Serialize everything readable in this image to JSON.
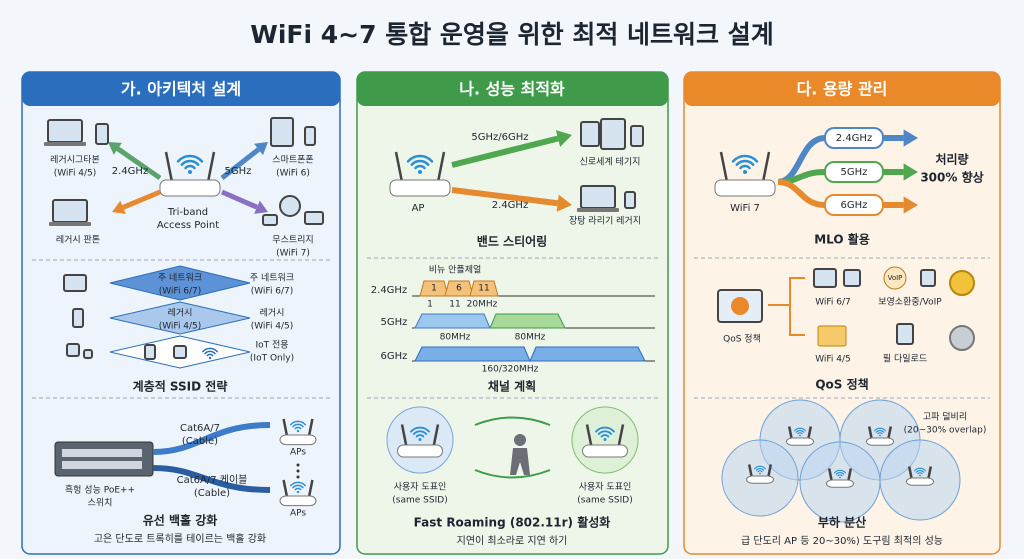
{
  "title": "WiFi 4~7 통합 운영을 위한 최적 네트워크 설계",
  "panels": [
    {
      "header": "가. 아키텍처 설계",
      "sections": [
        {
          "labels": [
            "레거시그타본",
            "(WiFi 4/5)",
            "2.4GHz",
            "5GHz",
            "스마트폰폰",
            "(WiFi 6)",
            "Tri-band",
            "Access Point",
            "레거시 판톤",
            "무스트리지",
            "(WiFi 7)"
          ]
        },
        {
          "labels": [
            "주 네트워크",
            "(WiFi 6/7)",
            "레거시",
            "(WiFi 4/5)",
            "주 네트워크",
            "(WiFi 6/7)",
            "레거시",
            "(WiFi 4/5)",
            "IoT 전용",
            "(IoT Only)"
          ],
          "caption": "계층적 SSID 전략"
        },
        {
          "labels": [
            "Cat6A/7",
            "(Cable)",
            "APs",
            "흑헝 성능 PoE++",
            "스위치",
            "Cat6A/7 케이블",
            "(Cable)",
            "APs"
          ],
          "caption": "유선 백홀 강화",
          "subcaption": "고은 단도로 트록히를 테이르는 백홀 강화"
        }
      ]
    },
    {
      "header": "나. 성능 최적화",
      "sections": [
        {
          "labels": [
            "5GHz/6GHz",
            "신로세계 테기지",
            "AP",
            "2.4GHz",
            "장탕 라리기 레거지"
          ],
          "caption": "밴드 스티어링"
        },
        {
          "labels": [
            "비뉴 안플제얼",
            "2.4GHz",
            "1",
            "6",
            "11",
            "1",
            "11",
            "20MHz",
            "5GHz",
            "80MHz",
            "80MHz",
            "6GHz",
            "160/320MHz"
          ],
          "caption": "채널 계획"
        },
        {
          "labels": [
            "사용자 도표인",
            "(same SSID)",
            "사용자 도표인",
            "(same SSID)"
          ],
          "caption": "Fast Roaming (802.11r) 활성화",
          "subcaption": "지연이 최소라로 지연 하기"
        }
      ]
    },
    {
      "header": "다. 용량 관리",
      "sections": [
        {
          "labels": [
            "WiFi 7",
            "2.4GHz",
            "5GHz",
            "6GHz",
            "처리량",
            "300% 향상"
          ],
          "caption": "MLO 활용"
        },
        {
          "labels": [
            "QoS 정책",
            "VoIP",
            "WiFi 6/7",
            "보영소환중/VoIP",
            "WiFi 4/5",
            "필 다일로드"
          ],
          "caption": "QoS 정책"
        },
        {
          "labels": [
            "고파 덜비리",
            "(20~30% overlap)"
          ],
          "caption": "부하 분산",
          "subcaption": "급 단도리 AP 등 20~30%) 도구림 최적의 성능"
        }
      ]
    }
  ]
}
